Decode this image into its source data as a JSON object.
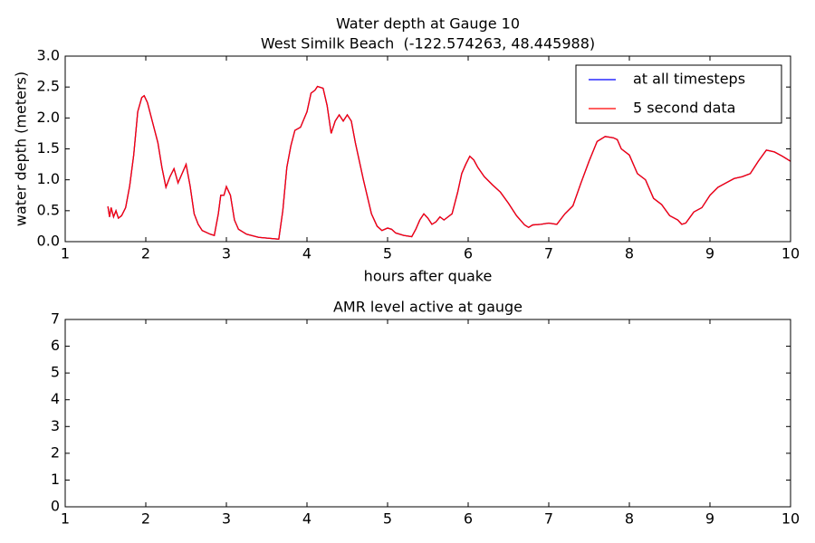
{
  "chart_data": [
    {
      "type": "line",
      "title": "Water depth at Gauge 10",
      "subtitle": "West Similk Beach  (-122.574263, 48.445988)",
      "xlabel": "hours after quake",
      "ylabel": "water depth (meters)",
      "xlim": [
        1,
        10
      ],
      "xticks": [
        1,
        2,
        3,
        4,
        5,
        6,
        7,
        8,
        9,
        10
      ],
      "ylim": [
        0,
        3
      ],
      "yticks": [
        {
          "value": 0,
          "label": "0.0"
        },
        {
          "value": 0.5,
          "label": "0.5"
        },
        {
          "value": 1,
          "label": "1.0"
        },
        {
          "value": 1.5,
          "label": "1.5"
        },
        {
          "value": 2,
          "label": "2.0"
        },
        {
          "value": 2.5,
          "label": "2.5"
        },
        {
          "value": 3,
          "label": "3.0"
        }
      ],
      "legend": "upper right",
      "x": [
        1.53,
        1.55,
        1.57,
        1.6,
        1.63,
        1.66,
        1.7,
        1.75,
        1.8,
        1.85,
        1.9,
        1.95,
        1.98,
        2.02,
        2.08,
        2.15,
        2.2,
        2.25,
        2.3,
        2.35,
        2.4,
        2.45,
        2.5,
        2.55,
        2.6,
        2.65,
        2.7,
        2.8,
        2.85,
        2.9,
        2.93,
        2.97,
        3.0,
        3.05,
        3.1,
        3.15,
        3.25,
        3.4,
        3.65,
        3.7,
        3.75,
        3.8,
        3.85,
        3.92,
        4.0,
        4.05,
        4.1,
        4.13,
        4.2,
        4.25,
        4.3,
        4.35,
        4.4,
        4.45,
        4.5,
        4.55,
        4.6,
        4.7,
        4.8,
        4.87,
        4.93,
        5.0,
        5.05,
        5.1,
        5.2,
        5.3,
        5.35,
        5.4,
        5.45,
        5.5,
        5.55,
        5.6,
        5.65,
        5.7,
        5.75,
        5.8,
        5.87,
        5.92,
        5.97,
        6.02,
        6.07,
        6.12,
        6.2,
        6.3,
        6.4,
        6.5,
        6.6,
        6.7,
        6.75,
        6.8,
        6.9,
        7.0,
        7.1,
        7.2,
        7.3,
        7.4,
        7.5,
        7.6,
        7.7,
        7.8,
        7.85,
        7.9,
        8.0,
        8.1,
        8.2,
        8.3,
        8.4,
        8.5,
        8.6,
        8.65,
        8.7,
        8.8,
        8.9,
        9.0,
        9.1,
        9.2,
        9.3,
        9.4,
        9.5,
        9.6,
        9.7,
        9.8,
        9.9,
        10.0
      ],
      "series": [
        {
          "name": "at all timesteps",
          "color": "#0000ff",
          "values": [
            0.57,
            0.4,
            0.55,
            0.4,
            0.5,
            0.38,
            0.42,
            0.55,
            0.9,
            1.4,
            2.1,
            2.33,
            2.36,
            2.25,
            1.95,
            1.6,
            1.2,
            0.88,
            1.05,
            1.18,
            0.95,
            1.1,
            1.25,
            0.9,
            0.45,
            0.28,
            0.18,
            0.12,
            0.1,
            0.45,
            0.75,
            0.75,
            0.89,
            0.75,
            0.35,
            0.2,
            0.12,
            0.07,
            0.04,
            0.5,
            1.2,
            1.55,
            1.8,
            1.85,
            2.1,
            2.4,
            2.45,
            2.51,
            2.48,
            2.2,
            1.75,
            1.95,
            2.05,
            1.95,
            2.05,
            1.95,
            1.6,
            1.0,
            0.45,
            0.25,
            0.18,
            0.22,
            0.2,
            0.14,
            0.1,
            0.08,
            0.2,
            0.35,
            0.45,
            0.38,
            0.28,
            0.32,
            0.4,
            0.35,
            0.4,
            0.45,
            0.8,
            1.1,
            1.25,
            1.38,
            1.32,
            1.2,
            1.05,
            0.92,
            0.8,
            0.62,
            0.42,
            0.27,
            0.23,
            0.27,
            0.28,
            0.3,
            0.28,
            0.45,
            0.58,
            0.95,
            1.3,
            1.62,
            1.7,
            1.68,
            1.65,
            1.5,
            1.4,
            1.1,
            1.0,
            0.7,
            0.6,
            0.42,
            0.35,
            0.28,
            0.3,
            0.48,
            0.55,
            0.75,
            0.88,
            0.95,
            1.02,
            1.05,
            1.1,
            1.3,
            1.48,
            1.45,
            1.38,
            1.3
          ]
        },
        {
          "name": "5 second data",
          "color": "#ff0000",
          "values": [
            0.57,
            0.4,
            0.55,
            0.4,
            0.5,
            0.38,
            0.42,
            0.55,
            0.9,
            1.4,
            2.1,
            2.33,
            2.36,
            2.25,
            1.95,
            1.6,
            1.2,
            0.88,
            1.05,
            1.18,
            0.95,
            1.1,
            1.25,
            0.9,
            0.45,
            0.28,
            0.18,
            0.12,
            0.1,
            0.45,
            0.75,
            0.75,
            0.89,
            0.75,
            0.35,
            0.2,
            0.12,
            0.07,
            0.04,
            0.5,
            1.2,
            1.55,
            1.8,
            1.85,
            2.1,
            2.4,
            2.45,
            2.51,
            2.48,
            2.2,
            1.75,
            1.95,
            2.05,
            1.95,
            2.05,
            1.95,
            1.6,
            1.0,
            0.45,
            0.25,
            0.18,
            0.22,
            0.2,
            0.14,
            0.1,
            0.08,
            0.2,
            0.35,
            0.45,
            0.38,
            0.28,
            0.32,
            0.4,
            0.35,
            0.4,
            0.45,
            0.8,
            1.1,
            1.25,
            1.38,
            1.32,
            1.2,
            1.05,
            0.92,
            0.8,
            0.62,
            0.42,
            0.27,
            0.23,
            0.27,
            0.28,
            0.3,
            0.28,
            0.45,
            0.58,
            0.95,
            1.3,
            1.62,
            1.7,
            1.68,
            1.65,
            1.5,
            1.4,
            1.1,
            1.0,
            0.7,
            0.6,
            0.42,
            0.35,
            0.28,
            0.3,
            0.48,
            0.55,
            0.75,
            0.88,
            0.95,
            1.02,
            1.05,
            1.1,
            1.3,
            1.48,
            1.45,
            1.38,
            1.3
          ]
        }
      ]
    },
    {
      "type": "line",
      "title": "AMR level active at gauge",
      "xlim": [
        1,
        10
      ],
      "xticks": [
        1,
        2,
        3,
        4,
        5,
        6,
        7,
        8,
        9,
        10
      ],
      "ylim": [
        0,
        7
      ],
      "yticks": [
        0,
        1,
        2,
        3,
        4,
        5,
        6,
        7
      ]
    }
  ]
}
